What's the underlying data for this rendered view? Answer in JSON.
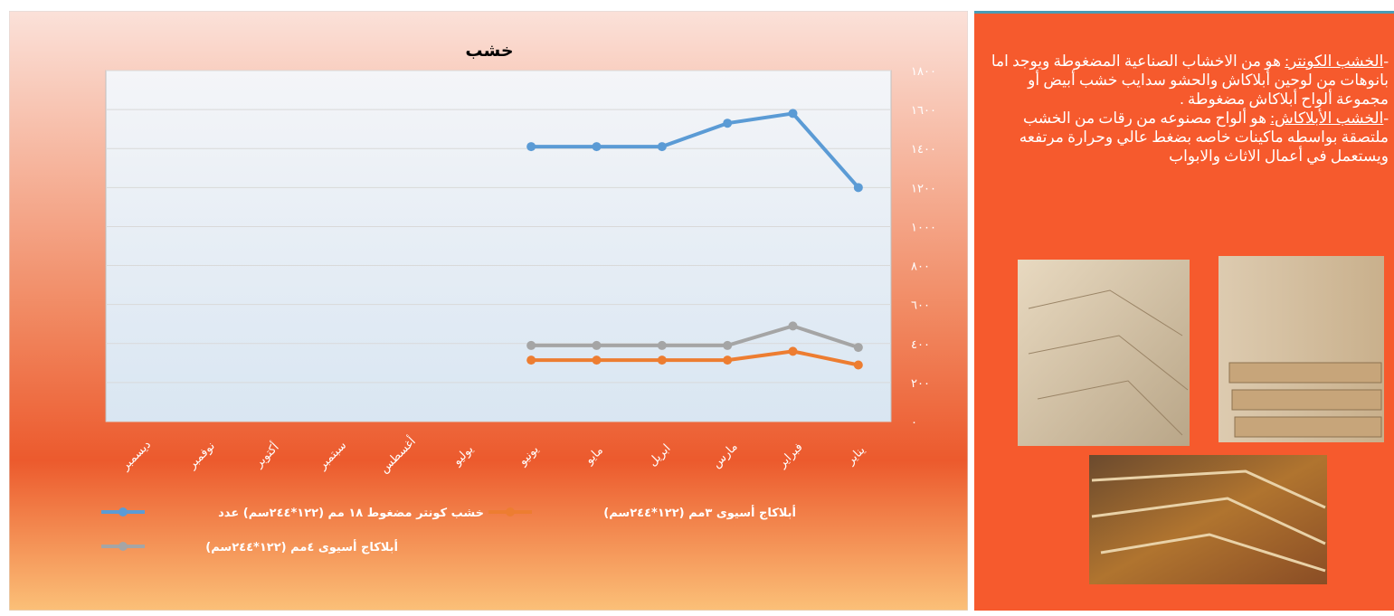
{
  "chart_data": {
    "type": "line",
    "title": "خشب",
    "categories": [
      "يناير",
      "فبراير",
      "مارس",
      "ابريل",
      "مايو",
      "يونيو",
      "يوليو",
      "أغسطس",
      "سبتمبر",
      "أكتوبر",
      "نوفمبر",
      "ديسمبر"
    ],
    "series": [
      {
        "name": "خشب كونتر مضغوط ١٨ مم   (١٢٢*٢٤٤سم) عدد",
        "color": "#5b9bd5",
        "values": [
          1200,
          1580,
          1530,
          1410,
          1410,
          1410,
          null,
          null,
          null,
          null,
          null,
          null
        ]
      },
      {
        "name": "أبلاكاج أسيوى ٣مم    (١٢٢*٢٤٤سم)",
        "color": "#ed7d31",
        "values": [
          290,
          360,
          315,
          315,
          315,
          315,
          null,
          null,
          null,
          null,
          null,
          null
        ]
      },
      {
        "name": "أبلاكاج أسيوى ٤مم   (١٢٢*٢٤٤سم)",
        "color": "#a5a5a5",
        "values": [
          380,
          490,
          390,
          390,
          390,
          390,
          null,
          null,
          null,
          null,
          null,
          null
        ]
      }
    ],
    "ylim": [
      0,
      1800
    ],
    "yticks": [
      {
        "value": 0,
        "label": "٠"
      },
      {
        "value": 200,
        "label": "٢٠٠"
      },
      {
        "value": 400,
        "label": "٤٠٠"
      },
      {
        "value": 600,
        "label": "٦٠٠"
      },
      {
        "value": 800,
        "label": "٨٠٠"
      },
      {
        "value": 1000,
        "label": "١٠٠٠"
      },
      {
        "value": 1200,
        "label": "١٢٠٠"
      },
      {
        "value": 1400,
        "label": "١٤٠٠"
      },
      {
        "value": 1600,
        "label": "١٦٠٠"
      },
      {
        "value": 1800,
        "label": "١٨٠٠"
      }
    ],
    "grid": true,
    "x_reversed": true,
    "y_axis_side": "right"
  },
  "side_panel": {
    "paragraphs": [
      {
        "lead": "-",
        "term": "الخشب الكونتر:",
        "text": " هو من الاخشاب الصناعية المضغوطة  ويوجد اما بانوهات من لوحين أبلاكاش والحشو سدايب خشب أبيض أو مجموعة ألواح أبلاكاش مضغوطة ."
      },
      {
        "lead": "-",
        "term": "الخشب الأبلاكاش:",
        "text": " هو ألواح مصنوعه من رقات من الخشب ملتصقة بواسطه ماكينات خاصه بضغط عالي وحرارة مرتفعه ويستعمل في أعمال الاثاث والابواب"
      }
    ]
  }
}
